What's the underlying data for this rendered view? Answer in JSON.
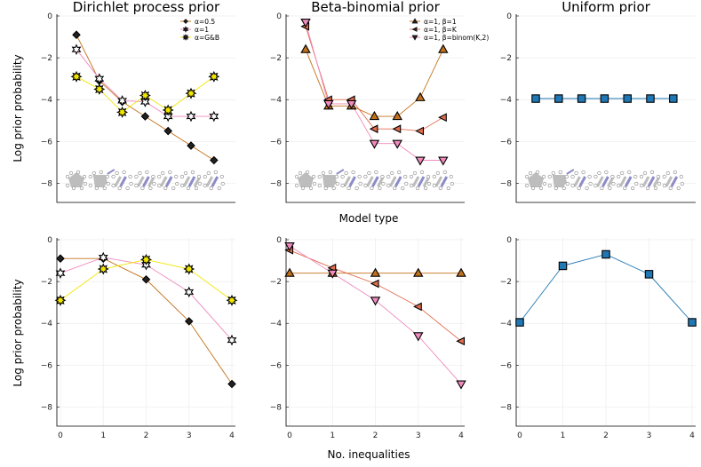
{
  "figure": {
    "ylabel": "Log prior probability",
    "top_xlabel": "Model type",
    "bottom_xlabel": "No. inequalities"
  },
  "colors": {
    "c1": "#e26c4f",
    "c2": "#c3711a",
    "c3": "#f2e600",
    "c4": "#f08bbd",
    "blue": "#1f77b4",
    "pict": "#bdbdbd"
  },
  "chart_data": [
    {
      "id": "dp-model",
      "type": "line",
      "title": "Dirichlet process prior",
      "xlabel": "",
      "ylabel": "Log prior probability",
      "ylim": [
        -9,
        0
      ],
      "yticks": [
        0,
        -2,
        -4,
        -6,
        -8
      ],
      "x": [
        1,
        2,
        3,
        4,
        5,
        6,
        7
      ],
      "legend": [
        "α=0.5",
        "α=1",
        "α=G&B"
      ],
      "series": [
        {
          "name": "α=0.5",
          "marker": "diamond",
          "color": "c2",
          "values": [
            -0.9,
            -3.1,
            -4.1,
            -4.8,
            -5.5,
            -6.2,
            -6.9
          ]
        },
        {
          "name": "α=1",
          "marker": "star6",
          "color": "c4",
          "values": [
            -1.6,
            -3.0,
            -4.05,
            -4.1,
            -4.8,
            -4.8,
            -4.8
          ]
        },
        {
          "name": "α=G&B",
          "marker": "star8",
          "color": "c3",
          "values": [
            -2.9,
            -3.5,
            -4.6,
            -3.8,
            -4.5,
            -3.7,
            -2.9
          ]
        }
      ]
    },
    {
      "id": "bb-model",
      "type": "line",
      "title": "Beta-binomial prior",
      "xlabel": "",
      "ylabel": "",
      "ylim": [
        -9,
        0
      ],
      "yticks": [
        0,
        -2,
        -4,
        -6,
        -8
      ],
      "x": [
        1,
        2,
        3,
        4,
        5,
        6,
        7
      ],
      "legend": [
        "α=1, β=1",
        "α=1, β=K",
        "α=1, β=binom(K,2)"
      ],
      "series": [
        {
          "name": "α=1, β=1",
          "marker": "triangle-up",
          "color": "c2",
          "values": [
            -1.6,
            -4.3,
            -4.3,
            -4.8,
            -4.8,
            -3.9,
            -1.6
          ]
        },
        {
          "name": "α=1, β=K",
          "marker": "triangle-left",
          "color": "c1",
          "values": [
            -0.5,
            -4.0,
            -4.0,
            -5.4,
            -5.4,
            -5.5,
            -4.85
          ]
        },
        {
          "name": "α=1, β=binom(K,2)",
          "marker": "triangle-down",
          "color": "c4",
          "values": [
            -0.3,
            -4.2,
            -4.2,
            -6.1,
            -6.1,
            -6.9,
            -6.9
          ]
        }
      ]
    },
    {
      "id": "u-model",
      "type": "line",
      "title": "Uniform prior",
      "xlabel": "",
      "ylabel": "",
      "ylim": [
        -9,
        0
      ],
      "yticks": [
        0,
        -2,
        -4,
        -6,
        -8
      ],
      "x": [
        1,
        2,
        3,
        4,
        5,
        6,
        7
      ],
      "legend": [],
      "series": [
        {
          "name": "Uniform",
          "marker": "square",
          "color": "blue",
          "values": [
            -3.95,
            -3.95,
            -3.95,
            -3.95,
            -3.95,
            -3.95,
            -3.95
          ]
        }
      ]
    },
    {
      "id": "dp-ineq",
      "type": "line",
      "title": "",
      "xlabel": "No. inequalities",
      "ylabel": "Log prior probability",
      "ylim": [
        -9,
        0
      ],
      "yticks": [
        0,
        -2,
        -4,
        -6,
        -8
      ],
      "x": [
        0,
        1,
        2,
        3,
        4
      ],
      "xticks": [
        0,
        1,
        2,
        3,
        4
      ],
      "legend": [],
      "series": [
        {
          "name": "α=0.5",
          "marker": "diamond",
          "color": "c2",
          "values": [
            -0.9,
            -0.9,
            -1.9,
            -3.9,
            -6.9
          ]
        },
        {
          "name": "α=1",
          "marker": "star6",
          "color": "c4",
          "values": [
            -1.6,
            -0.85,
            -1.2,
            -2.5,
            -4.8
          ]
        },
        {
          "name": "α=G&B",
          "marker": "star8",
          "color": "c3",
          "values": [
            -2.9,
            -1.4,
            -0.95,
            -1.4,
            -2.9
          ]
        }
      ]
    },
    {
      "id": "bb-ineq",
      "type": "line",
      "title": "",
      "xlabel": "No. inequalities",
      "ylabel": "",
      "ylim": [
        -9,
        0
      ],
      "yticks": [
        0,
        -2,
        -4,
        -6,
        -8
      ],
      "x": [
        0,
        1,
        2,
        3,
        4
      ],
      "xticks": [
        0,
        1,
        2,
        3,
        4
      ],
      "legend": [],
      "series": [
        {
          "name": "α=1, β=1",
          "marker": "triangle-up",
          "color": "c2",
          "values": [
            -1.6,
            -1.6,
            -1.6,
            -1.6,
            -1.6
          ]
        },
        {
          "name": "α=1, β=K",
          "marker": "triangle-left",
          "color": "c1",
          "values": [
            -0.5,
            -1.35,
            -2.1,
            -3.2,
            -4.85
          ]
        },
        {
          "name": "α=1, β=binom(K,2)",
          "marker": "triangle-down",
          "color": "c4",
          "values": [
            -0.3,
            -1.6,
            -2.9,
            -4.6,
            -6.9
          ]
        }
      ]
    },
    {
      "id": "u-ineq",
      "type": "line",
      "title": "",
      "xlabel": "No. inequalities",
      "ylabel": "",
      "ylim": [
        -9,
        0
      ],
      "yticks": [
        0,
        -2,
        -4,
        -6,
        -8
      ],
      "x": [
        0,
        1,
        2,
        3,
        4
      ],
      "xticks": [
        0,
        1,
        2,
        3,
        4
      ],
      "legend": [],
      "series": [
        {
          "name": "Uniform",
          "marker": "square",
          "color": "blue",
          "values": [
            -3.95,
            -1.25,
            -0.7,
            -1.65,
            -3.95
          ]
        }
      ]
    }
  ]
}
